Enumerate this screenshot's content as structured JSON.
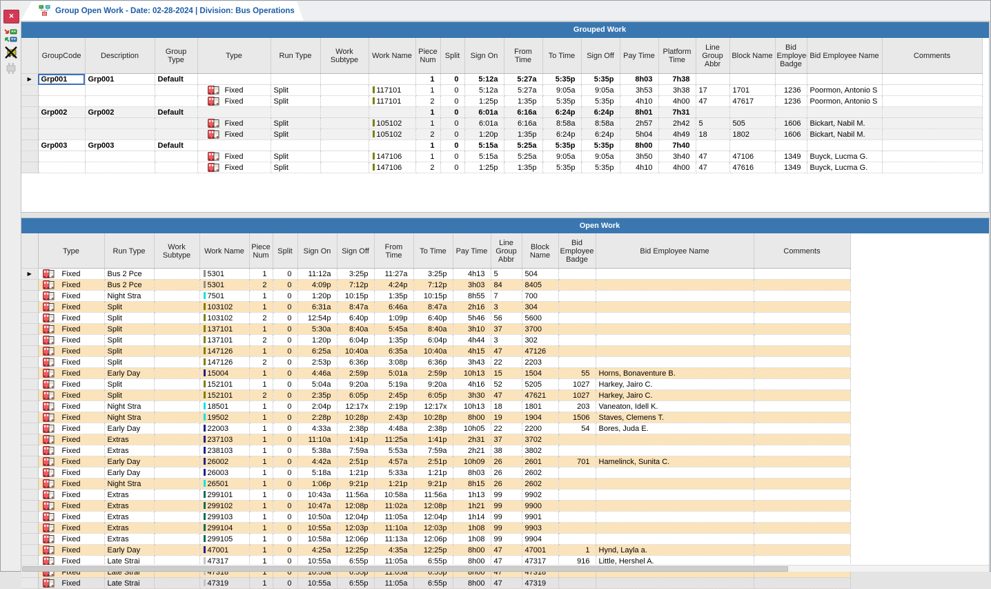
{
  "colors": {
    "title_bar": "#3a77b0",
    "row_alt": "#fbe3bb",
    "group_shaded": "#f1f1f1",
    "close_button": "#d13a55",
    "tab_text": "#1d5da8"
  },
  "tab": {
    "icon": "group-work-tab-icon",
    "title": "Group Open Work - Date: 02-28-2024 | Division: Bus Operations",
    "close_label": "×"
  },
  "toolbar": {
    "close_label": "×",
    "buttons": [
      {
        "name": "close-button",
        "label": "×"
      },
      {
        "name": "assign-group-icon"
      },
      {
        "name": "unassign-group-icon"
      },
      {
        "name": "connector-icon-disabled"
      }
    ]
  },
  "grouped_work": {
    "title": "Grouped Work",
    "columns": [
      "",
      "GroupCode",
      "Description",
      "Group Type",
      "Type",
      "Run Type",
      "Work Subtype",
      "Work Name",
      "Piece Num",
      "Split",
      "Sign On",
      "From Time",
      "To Time",
      "Sign Off",
      "Pay Time",
      "Platform Time",
      "Line Group Abbr",
      "Block Name",
      "Bid Employee Badge",
      "Bid Employee Name",
      "Comments"
    ],
    "rows": [
      {
        "kind": "group",
        "current": true,
        "selected": true,
        "group_code": "Grp001",
        "description": "Grp001",
        "group_type": "Default",
        "piece_num": "1",
        "split": "0",
        "sign_on": "5:12a",
        "from_time": "5:27a",
        "to_time": "5:35p",
        "sign_off": "5:35p",
        "pay_time": "8h03",
        "platform_time": "7h38"
      },
      {
        "kind": "detail",
        "type": "Fixed",
        "run_type": "Split",
        "work_name": "117101",
        "bar": "#7f7f00",
        "piece_num": "1",
        "split": "0",
        "sign_on": "5:12a",
        "from_time": "5:27a",
        "to_time": "9:05a",
        "sign_off": "9:05a",
        "pay_time": "3h53",
        "platform_time": "3h38",
        "line_group": "17",
        "block_name": "1701",
        "badge": "1236",
        "employee": "Poormon, Antonio S"
      },
      {
        "kind": "detail",
        "type": "Fixed",
        "run_type": "Split",
        "work_name": "117101",
        "bar": "#7f7f00",
        "piece_num": "2",
        "split": "0",
        "sign_on": "1:25p",
        "from_time": "1:35p",
        "to_time": "5:35p",
        "sign_off": "5:35p",
        "pay_time": "4h10",
        "platform_time": "4h00",
        "line_group": "47",
        "block_name": "47617",
        "badge": "1236",
        "employee": "Poormon, Antonio S"
      },
      {
        "kind": "group",
        "shaded": true,
        "group_code": "Grp002",
        "description": "Grp002",
        "group_type": "Default",
        "piece_num": "1",
        "split": "0",
        "sign_on": "6:01a",
        "from_time": "6:16a",
        "to_time": "6:24p",
        "sign_off": "6:24p",
        "pay_time": "8h01",
        "platform_time": "7h31"
      },
      {
        "kind": "detail",
        "shaded": true,
        "type": "Fixed",
        "run_type": "Split",
        "work_name": "105102",
        "bar": "#7f7f00",
        "piece_num": "1",
        "split": "0",
        "sign_on": "6:01a",
        "from_time": "6:16a",
        "to_time": "8:58a",
        "sign_off": "8:58a",
        "pay_time": "2h57",
        "platform_time": "2h42",
        "line_group": "5",
        "block_name": "505",
        "badge": "1606",
        "employee": "Bickart, Nabil M."
      },
      {
        "kind": "detail",
        "shaded": true,
        "type": "Fixed",
        "run_type": "Split",
        "work_name": "105102",
        "bar": "#7f7f00",
        "piece_num": "2",
        "split": "0",
        "sign_on": "1:20p",
        "from_time": "1:35p",
        "to_time": "6:24p",
        "sign_off": "6:24p",
        "pay_time": "5h04",
        "platform_time": "4h49",
        "line_group": "18",
        "block_name": "1802",
        "badge": "1606",
        "employee": "Bickart, Nabil M."
      },
      {
        "kind": "group",
        "group_code": "Grp003",
        "description": "Grp003",
        "group_type": "Default",
        "piece_num": "1",
        "split": "0",
        "sign_on": "5:15a",
        "from_time": "5:25a",
        "to_time": "5:35p",
        "sign_off": "5:35p",
        "pay_time": "8h00",
        "platform_time": "7h40"
      },
      {
        "kind": "detail",
        "type": "Fixed",
        "run_type": "Split",
        "work_name": "147106",
        "bar": "#7f7f00",
        "piece_num": "1",
        "split": "0",
        "sign_on": "5:15a",
        "from_time": "5:25a",
        "to_time": "9:05a",
        "sign_off": "9:05a",
        "pay_time": "3h50",
        "platform_time": "3h40",
        "line_group": "47",
        "block_name": "47106",
        "badge": "1349",
        "employee": "Buyck, Lucma G."
      },
      {
        "kind": "detail",
        "type": "Fixed",
        "run_type": "Split",
        "work_name": "147106",
        "bar": "#7f7f00",
        "piece_num": "2",
        "split": "0",
        "sign_on": "1:25p",
        "from_time": "1:35p",
        "to_time": "5:35p",
        "sign_off": "5:35p",
        "pay_time": "4h10",
        "platform_time": "4h00",
        "line_group": "47",
        "block_name": "47616",
        "badge": "1349",
        "employee": "Buyck, Lucma G."
      }
    ]
  },
  "open_work": {
    "title": "Open Work",
    "columns": [
      "",
      "Type",
      "Run Type",
      "Work Subtype",
      "Work Name",
      "Piece Num",
      "Split",
      "Sign On",
      "Sign Off",
      "From Time",
      "To Time",
      "Pay Time",
      "Line Group Abbr",
      "Block Name",
      "Bid Employee Badge",
      "Bid Employee Name",
      "Comments"
    ],
    "rows": [
      {
        "current": true,
        "type": "Fixed",
        "run_type": "Bus 2 Pce",
        "work_name": "5301",
        "bar": "#8f8f8f",
        "piece_num": "1",
        "split": "0",
        "sign_on": "11:12a",
        "sign_off": "3:25p",
        "from_time": "11:27a",
        "to_time": "3:25p",
        "pay_time": "4h13",
        "line_group": "5",
        "block_name": "504",
        "badge": "",
        "employee": ""
      },
      {
        "type": "Fixed",
        "run_type": "Bus 2 Pce",
        "work_name": "5301",
        "bar": "#8f8f8f",
        "piece_num": "2",
        "split": "0",
        "sign_on": "4:09p",
        "sign_off": "7:12p",
        "from_time": "4:24p",
        "to_time": "7:12p",
        "pay_time": "3h03",
        "line_group": "84",
        "block_name": "8405",
        "badge": "",
        "employee": ""
      },
      {
        "type": "Fixed",
        "run_type": "Night Stra",
        "work_name": "7501",
        "bar": "#17e0e0",
        "piece_num": "1",
        "split": "0",
        "sign_on": "1:20p",
        "sign_off": "10:15p",
        "from_time": "1:35p",
        "to_time": "10:15p",
        "pay_time": "8h55",
        "line_group": "7",
        "block_name": "700",
        "badge": "",
        "employee": ""
      },
      {
        "type": "Fixed",
        "run_type": "Split",
        "work_name": "103102",
        "bar": "#7f7f00",
        "piece_num": "1",
        "split": "0",
        "sign_on": "6:31a",
        "sign_off": "8:47a",
        "from_time": "6:46a",
        "to_time": "8:47a",
        "pay_time": "2h16",
        "line_group": "3",
        "block_name": "304",
        "badge": "",
        "employee": ""
      },
      {
        "type": "Fixed",
        "run_type": "Split",
        "work_name": "103102",
        "bar": "#7f7f00",
        "piece_num": "2",
        "split": "0",
        "sign_on": "12:54p",
        "sign_off": "6:40p",
        "from_time": "1:09p",
        "to_time": "6:40p",
        "pay_time": "5h46",
        "line_group": "56",
        "block_name": "5600",
        "badge": "",
        "employee": ""
      },
      {
        "type": "Fixed",
        "run_type": "Split",
        "work_name": "137101",
        "bar": "#7f7f00",
        "piece_num": "1",
        "split": "0",
        "sign_on": "5:30a",
        "sign_off": "8:40a",
        "from_time": "5:45a",
        "to_time": "8:40a",
        "pay_time": "3h10",
        "line_group": "37",
        "block_name": "3700",
        "badge": "",
        "employee": ""
      },
      {
        "type": "Fixed",
        "run_type": "Split",
        "work_name": "137101",
        "bar": "#7f7f00",
        "piece_num": "2",
        "split": "0",
        "sign_on": "1:20p",
        "sign_off": "6:04p",
        "from_time": "1:35p",
        "to_time": "6:04p",
        "pay_time": "4h44",
        "line_group": "3",
        "block_name": "302",
        "badge": "",
        "employee": ""
      },
      {
        "type": "Fixed",
        "run_type": "Split",
        "work_name": "147126",
        "bar": "#7f7f00",
        "piece_num": "1",
        "split": "0",
        "sign_on": "6:25a",
        "sign_off": "10:40a",
        "from_time": "6:35a",
        "to_time": "10:40a",
        "pay_time": "4h15",
        "line_group": "47",
        "block_name": "47126",
        "badge": "",
        "employee": ""
      },
      {
        "type": "Fixed",
        "run_type": "Split",
        "work_name": "147126",
        "bar": "#7f7f00",
        "piece_num": "2",
        "split": "0",
        "sign_on": "2:53p",
        "sign_off": "6:36p",
        "from_time": "3:08p",
        "to_time": "6:36p",
        "pay_time": "3h43",
        "line_group": "22",
        "block_name": "2203",
        "badge": "",
        "employee": ""
      },
      {
        "type": "Fixed",
        "run_type": "Early Day",
        "work_name": "15004",
        "bar": "#20208c",
        "piece_num": "1",
        "split": "0",
        "sign_on": "4:46a",
        "sign_off": "2:59p",
        "from_time": "5:01a",
        "to_time": "2:59p",
        "pay_time": "10h13",
        "line_group": "15",
        "block_name": "1504",
        "badge": "55",
        "employee": "Horns, Bonaventure B."
      },
      {
        "type": "Fixed",
        "run_type": "Split",
        "work_name": "152101",
        "bar": "#7f7f00",
        "piece_num": "1",
        "split": "0",
        "sign_on": "5:04a",
        "sign_off": "9:20a",
        "from_time": "5:19a",
        "to_time": "9:20a",
        "pay_time": "4h16",
        "line_group": "52",
        "block_name": "5205",
        "badge": "1027",
        "employee": "Harkey, Jairo C."
      },
      {
        "type": "Fixed",
        "run_type": "Split",
        "work_name": "152101",
        "bar": "#7f7f00",
        "piece_num": "2",
        "split": "0",
        "sign_on": "2:35p",
        "sign_off": "6:05p",
        "from_time": "2:45p",
        "to_time": "6:05p",
        "pay_time": "3h30",
        "line_group": "47",
        "block_name": "47621",
        "badge": "1027",
        "employee": "Harkey, Jairo C."
      },
      {
        "type": "Fixed",
        "run_type": "Night Stra",
        "work_name": "18501",
        "bar": "#17e0e0",
        "piece_num": "1",
        "split": "0",
        "sign_on": "2:04p",
        "sign_off": "12:17x",
        "from_time": "2:19p",
        "to_time": "12:17x",
        "pay_time": "10h13",
        "line_group": "18",
        "block_name": "1801",
        "badge": "203",
        "employee": "Vaneaton, Idell K."
      },
      {
        "type": "Fixed",
        "run_type": "Night Stra",
        "work_name": "19502",
        "bar": "#17e0e0",
        "piece_num": "1",
        "split": "0",
        "sign_on": "2:28p",
        "sign_off": "10:28p",
        "from_time": "2:43p",
        "to_time": "10:28p",
        "pay_time": "8h00",
        "line_group": "19",
        "block_name": "1904",
        "badge": "1506",
        "employee": "Staves, Clemens T."
      },
      {
        "type": "Fixed",
        "run_type": "Early Day",
        "work_name": "22003",
        "bar": "#20208c",
        "piece_num": "1",
        "split": "0",
        "sign_on": "4:33a",
        "sign_off": "2:38p",
        "from_time": "4:48a",
        "to_time": "2:38p",
        "pay_time": "10h05",
        "line_group": "22",
        "block_name": "2200",
        "badge": "54",
        "employee": "Bores, Juda E."
      },
      {
        "type": "Fixed",
        "run_type": "Extras",
        "work_name": "237103",
        "bar": "#20208c",
        "piece_num": "1",
        "split": "0",
        "sign_on": "11:10a",
        "sign_off": "1:41p",
        "from_time": "11:25a",
        "to_time": "1:41p",
        "pay_time": "2h31",
        "line_group": "37",
        "block_name": "3702",
        "badge": "",
        "employee": ""
      },
      {
        "type": "Fixed",
        "run_type": "Extras",
        "work_name": "238103",
        "bar": "#20208c",
        "piece_num": "1",
        "split": "0",
        "sign_on": "5:38a",
        "sign_off": "7:59a",
        "from_time": "5:53a",
        "to_time": "7:59a",
        "pay_time": "2h21",
        "line_group": "38",
        "block_name": "3802",
        "badge": "",
        "employee": ""
      },
      {
        "type": "Fixed",
        "run_type": "Early Day",
        "work_name": "26002",
        "bar": "#20208c",
        "piece_num": "1",
        "split": "0",
        "sign_on": "4:42a",
        "sign_off": "2:51p",
        "from_time": "4:57a",
        "to_time": "2:51p",
        "pay_time": "10h09",
        "line_group": "26",
        "block_name": "2601",
        "badge": "701",
        "employee": "Hamelinck, Sunita C."
      },
      {
        "type": "Fixed",
        "run_type": "Early Day",
        "work_name": "26003",
        "bar": "#20208c",
        "piece_num": "1",
        "split": "0",
        "sign_on": "5:18a",
        "sign_off": "1:21p",
        "from_time": "5:33a",
        "to_time": "1:21p",
        "pay_time": "8h03",
        "line_group": "26",
        "block_name": "2602",
        "badge": "",
        "employee": ""
      },
      {
        "type": "Fixed",
        "run_type": "Night Stra",
        "work_name": "26501",
        "bar": "#17e0e0",
        "piece_num": "1",
        "split": "0",
        "sign_on": "1:06p",
        "sign_off": "9:21p",
        "from_time": "1:21p",
        "to_time": "9:21p",
        "pay_time": "8h15",
        "line_group": "26",
        "block_name": "2602",
        "badge": "",
        "employee": ""
      },
      {
        "type": "Fixed",
        "run_type": "Extras",
        "work_name": "299101",
        "bar": "#0e6b5e",
        "piece_num": "1",
        "split": "0",
        "sign_on": "10:43a",
        "sign_off": "11:56a",
        "from_time": "10:58a",
        "to_time": "11:56a",
        "pay_time": "1h13",
        "line_group": "99",
        "block_name": "9902",
        "badge": "",
        "employee": ""
      },
      {
        "type": "Fixed",
        "run_type": "Extras",
        "work_name": "299102",
        "bar": "#0e6b5e",
        "piece_num": "1",
        "split": "0",
        "sign_on": "10:47a",
        "sign_off": "12:08p",
        "from_time": "11:02a",
        "to_time": "12:08p",
        "pay_time": "1h21",
        "line_group": "99",
        "block_name": "9900",
        "badge": "",
        "employee": ""
      },
      {
        "type": "Fixed",
        "run_type": "Extras",
        "work_name": "299103",
        "bar": "#0e6b5e",
        "piece_num": "1",
        "split": "0",
        "sign_on": "10:50a",
        "sign_off": "12:04p",
        "from_time": "11:05a",
        "to_time": "12:04p",
        "pay_time": "1h14",
        "line_group": "99",
        "block_name": "9901",
        "badge": "",
        "employee": ""
      },
      {
        "type": "Fixed",
        "run_type": "Extras",
        "work_name": "299104",
        "bar": "#0e6b5e",
        "piece_num": "1",
        "split": "0",
        "sign_on": "10:55a",
        "sign_off": "12:03p",
        "from_time": "11:10a",
        "to_time": "12:03p",
        "pay_time": "1h08",
        "line_group": "99",
        "block_name": "9903",
        "badge": "",
        "employee": ""
      },
      {
        "type": "Fixed",
        "run_type": "Extras",
        "work_name": "299105",
        "bar": "#0e6b5e",
        "piece_num": "1",
        "split": "0",
        "sign_on": "10:58a",
        "sign_off": "12:06p",
        "from_time": "11:13a",
        "to_time": "12:06p",
        "pay_time": "1h08",
        "line_group": "99",
        "block_name": "9904",
        "badge": "",
        "employee": ""
      },
      {
        "type": "Fixed",
        "run_type": "Early Day",
        "work_name": "47001",
        "bar": "#20208c",
        "piece_num": "1",
        "split": "0",
        "sign_on": "4:25a",
        "sign_off": "12:25p",
        "from_time": "4:35a",
        "to_time": "12:25p",
        "pay_time": "8h00",
        "line_group": "47",
        "block_name": "47001",
        "badge": "1",
        "employee": "Hynd, Layla a."
      },
      {
        "type": "Fixed",
        "run_type": "Late Strai",
        "work_name": "47317",
        "bar": "#c4c4c4",
        "piece_num": "1",
        "split": "0",
        "sign_on": "10:55a",
        "sign_off": "6:55p",
        "from_time": "11:05a",
        "to_time": "6:55p",
        "pay_time": "8h00",
        "line_group": "47",
        "block_name": "47317",
        "badge": "916",
        "employee": "Little, Hershel A."
      },
      {
        "type": "Fixed",
        "run_type": "Late Strai",
        "work_name": "47318",
        "bar": "#c4c4c4",
        "piece_num": "1",
        "split": "0",
        "sign_on": "10:55a",
        "sign_off": "6:55p",
        "from_time": "11:05a",
        "to_time": "6:55p",
        "pay_time": "8h00",
        "line_group": "47",
        "block_name": "47318",
        "badge": "",
        "employee": ""
      },
      {
        "type": "Fixed",
        "run_type": "Late Strai",
        "work_name": "47319",
        "bar": "#c4c4c4",
        "piece_num": "1",
        "split": "0",
        "sign_on": "10:55a",
        "sign_off": "6:55p",
        "from_time": "11:05a",
        "to_time": "6:55p",
        "pay_time": "8h00",
        "line_group": "47",
        "block_name": "47319",
        "badge": "",
        "employee": ""
      }
    ]
  }
}
